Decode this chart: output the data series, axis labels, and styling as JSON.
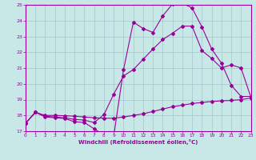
{
  "xlabel": "Windchill (Refroidissement éolien,°C)",
  "xlim": [
    0,
    23
  ],
  "ylim": [
    17,
    25
  ],
  "yticks": [
    17,
    18,
    19,
    20,
    21,
    22,
    23,
    24,
    25
  ],
  "xticks": [
    0,
    1,
    2,
    3,
    4,
    5,
    6,
    7,
    8,
    9,
    10,
    11,
    12,
    13,
    14,
    15,
    16,
    17,
    18,
    19,
    20,
    21,
    22,
    23
  ],
  "bg_color": "#c8e8e8",
  "grid_color": "#aacccc",
  "line_color": "#990099",
  "line1_x": [
    0,
    1,
    2,
    3,
    4,
    5,
    6,
    7,
    8,
    9,
    10,
    11,
    12,
    13,
    14,
    15,
    16,
    17,
    18,
    19,
    20,
    21,
    22,
    23
  ],
  "line1_y": [
    17.5,
    18.2,
    17.9,
    17.85,
    17.8,
    17.6,
    17.55,
    17.15,
    16.75,
    16.7,
    20.9,
    23.9,
    23.5,
    23.25,
    24.3,
    25.05,
    25.1,
    24.8,
    23.6,
    22.2,
    21.3,
    19.9,
    19.2,
    19.2
  ],
  "line2_x": [
    0,
    1,
    2,
    3,
    4,
    5,
    6,
    7,
    8,
    9,
    10,
    11,
    12,
    13,
    14,
    15,
    16,
    17,
    18,
    19,
    20,
    21,
    22,
    23
  ],
  "line2_y": [
    17.5,
    18.2,
    17.95,
    17.9,
    17.85,
    17.75,
    17.7,
    17.55,
    18.05,
    19.35,
    20.5,
    20.9,
    21.55,
    22.2,
    22.8,
    23.2,
    23.65,
    23.65,
    22.1,
    21.6,
    21.0,
    21.2,
    21.0,
    19.15
  ],
  "line3_x": [
    0,
    1,
    2,
    3,
    4,
    5,
    6,
    7,
    8,
    9,
    10,
    11,
    12,
    13,
    14,
    15,
    16,
    17,
    18,
    19,
    20,
    21,
    22,
    23
  ],
  "line3_y": [
    17.5,
    18.2,
    18.0,
    18.0,
    17.98,
    17.95,
    17.9,
    17.85,
    17.82,
    17.82,
    17.9,
    18.0,
    18.1,
    18.25,
    18.4,
    18.55,
    18.65,
    18.75,
    18.82,
    18.88,
    18.92,
    18.95,
    19.0,
    19.1
  ]
}
